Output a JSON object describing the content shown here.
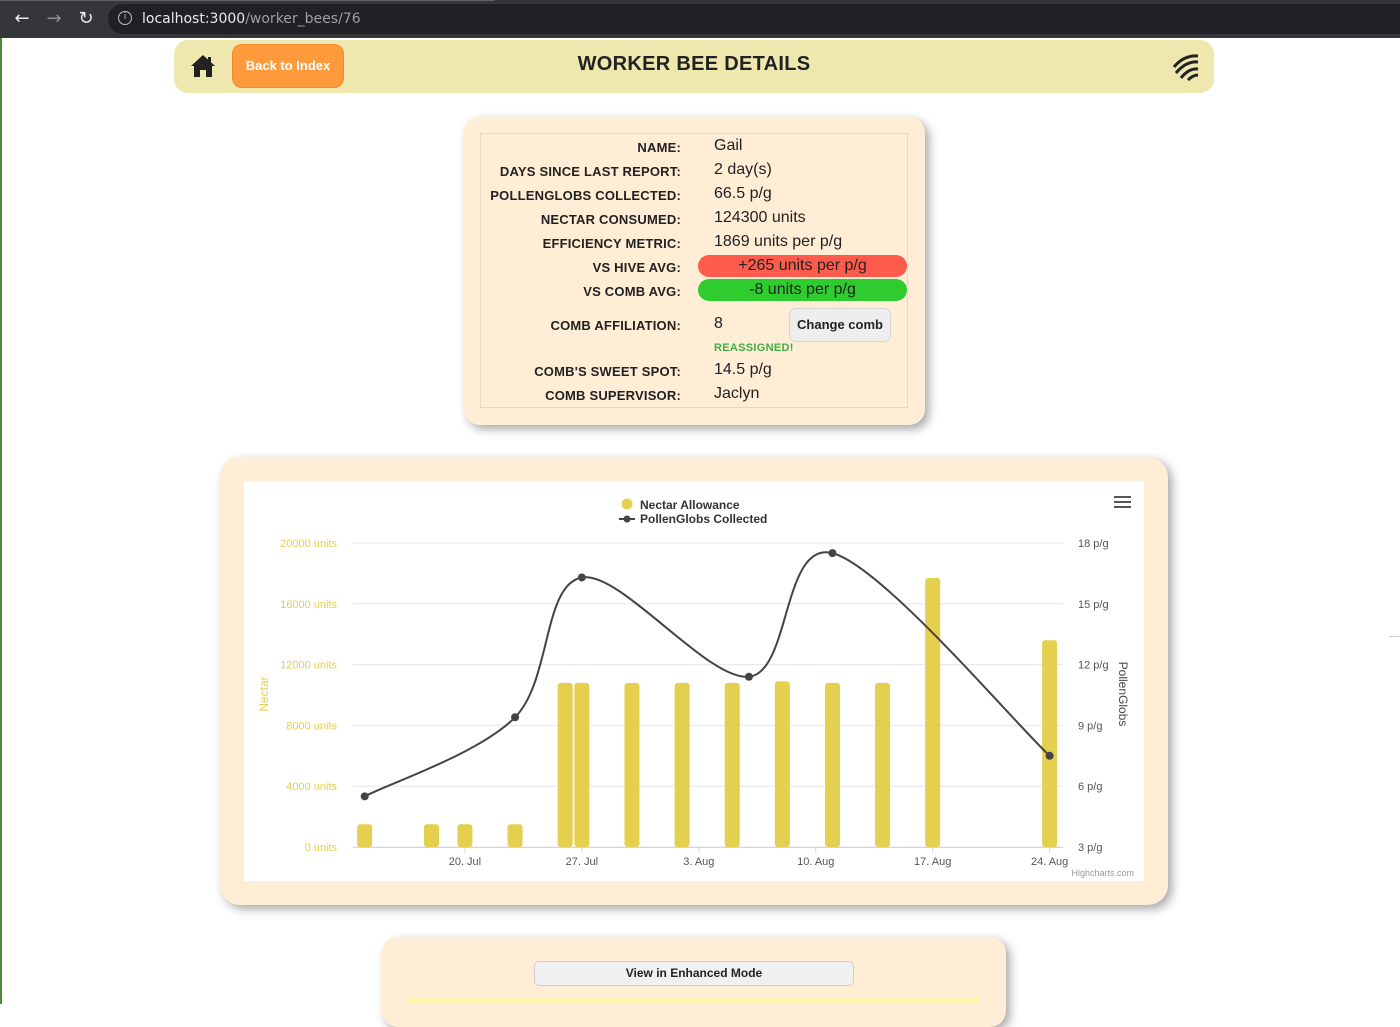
{
  "browser": {
    "url_host": "localhost:3000",
    "url_path": "/worker_bees/76",
    "back_glyph": "←",
    "forward_glyph": "→",
    "reload_glyph": "↻",
    "info_glyph": "i"
  },
  "header": {
    "back_label": "Back to Index",
    "title": "WORKER BEE DETAILS",
    "home_icon": "home-icon",
    "logo_icon": "logo-icon"
  },
  "details": {
    "name_label": "NAME:",
    "name": "Gail",
    "days_label": "DAYS SINCE LAST REPORT:",
    "days": "2 day(s)",
    "pollen_label": "POLLENGLOBS COLLECTED:",
    "pollen": "66.5 p/g",
    "nectar_label": "NECTAR CONSUMED:",
    "nectar": "124300 units",
    "efficiency_label": "EFFICIENCY METRIC:",
    "efficiency": "1869 units per p/g",
    "hive_label": "VS HIVE AVG:",
    "hive": "+265 units per p/g",
    "comb_avg_label": "VS COMB AVG:",
    "comb_avg": "-8 units per p/g",
    "comb_label": "COMB AFFILIATION:",
    "comb": "8",
    "change_comb_label": "Change comb",
    "reassigned": "REASSIGNED!",
    "sweet_spot_label": "COMB'S SWEET SPOT:",
    "sweet_spot": "14.5 p/g",
    "supervisor_label": "COMB SUPERVISOR:",
    "supervisor": "Jaclyn",
    "colors": {
      "hive_bad": "#fd5c4c",
      "comb_good": "#2ecc2e"
    }
  },
  "bottom": {
    "enhanced_label": "View in Enhanced Mode"
  },
  "chart_data": {
    "type": "bar",
    "legend": [
      "Nectar Allowance",
      "PollenGlobs Collected"
    ],
    "legend_position": "top-center",
    "credit": "Highcharts.com",
    "menu_icon": "hamburger-menu-icon",
    "x_ticks": [
      "20. Jul",
      "27. Jul",
      "3. Aug",
      "10. Aug",
      "17. Aug",
      "24. Aug"
    ],
    "x_tick_days": [
      20,
      27,
      34,
      41,
      48,
      55
    ],
    "x_range_days": [
      13.3,
      55.8
    ],
    "y_left": {
      "label": "Nectar",
      "range": [
        0,
        20000
      ],
      "ticks": [
        0,
        4000,
        8000,
        12000,
        16000,
        20000
      ],
      "tick_labels": [
        "0 units",
        "4000 units",
        "8000 units",
        "12000 units",
        "16000 units",
        "20000 units"
      ],
      "color": "#e4cf4e"
    },
    "y_right": {
      "label": "PollenGlobs",
      "range": [
        3,
        18
      ],
      "ticks": [
        3,
        6,
        9,
        12,
        15,
        18
      ],
      "tick_labels": [
        "3 p/g",
        "6 p/g",
        "9 p/g",
        "12 p/g",
        "15 p/g",
        "18 p/g"
      ]
    },
    "grid": true,
    "series": [
      {
        "name": "Nectar Allowance",
        "type": "column",
        "color": "#e4cf4e",
        "x_days": [
          14,
          18,
          20,
          23,
          26,
          27,
          30,
          33,
          36,
          39,
          42,
          45,
          48,
          55
        ],
        "values": [
          1500,
          1500,
          1500,
          1500,
          10800,
          10800,
          10800,
          10800,
          10800,
          10900,
          10800,
          10800,
          17700,
          13600
        ]
      },
      {
        "name": "PollenGlobs Collected",
        "type": "spline",
        "color": "#444444",
        "x_days": [
          14,
          23,
          27,
          37,
          42,
          55
        ],
        "values": [
          5.5,
          9.4,
          16.3,
          11.4,
          17.5,
          7.5
        ]
      }
    ]
  }
}
